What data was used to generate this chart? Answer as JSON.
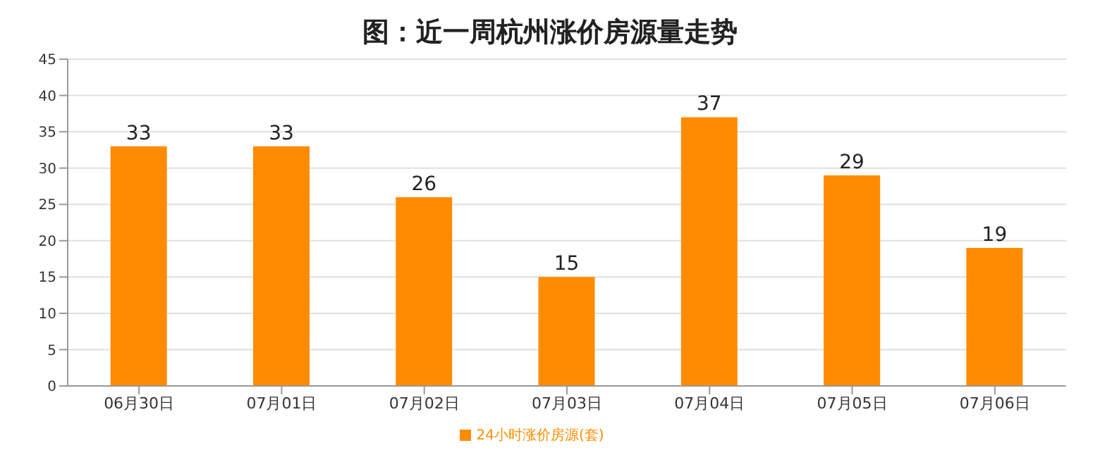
{
  "chart_data": {
    "type": "bar",
    "title": "图：近一周杭州涨价房源量走势",
    "categories": [
      "06月30日",
      "07月01日",
      "07月02日",
      "07月03日",
      "07月04日",
      "07月05日",
      "07月06日"
    ],
    "series": [
      {
        "name": "24小时涨价房源(套)",
        "color": "#ff8c00",
        "values": [
          33,
          33,
          26,
          15,
          37,
          29,
          19
        ]
      }
    ],
    "ylim": [
      0,
      45
    ],
    "yticks": [
      0,
      5,
      10,
      15,
      20,
      25,
      30,
      35,
      40,
      45
    ],
    "grid": "y",
    "legend": "bottom",
    "data_labels": true
  }
}
